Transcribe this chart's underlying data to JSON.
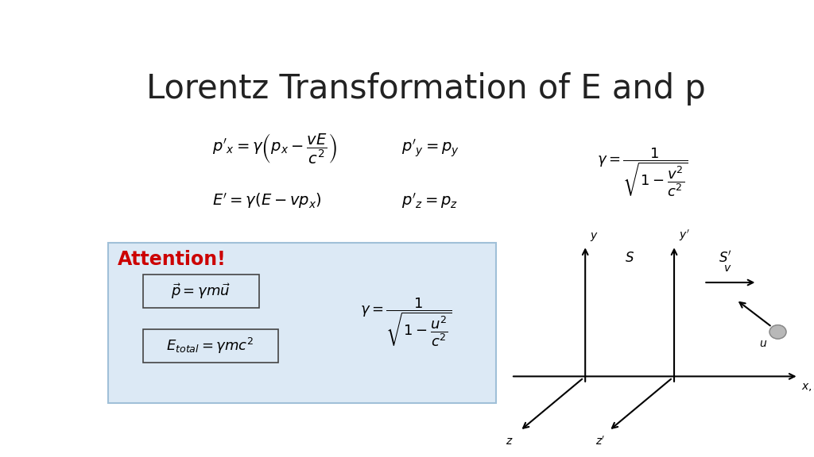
{
  "title": "Lorentz Transformation of E and p",
  "title_fontsize": 30,
  "bg_color": "#ffffff",
  "attention_bg": "#dce9f5",
  "attention_text": "Attention!",
  "attention_color": "#cc0000",
  "attention_border": "#a0c0d8"
}
